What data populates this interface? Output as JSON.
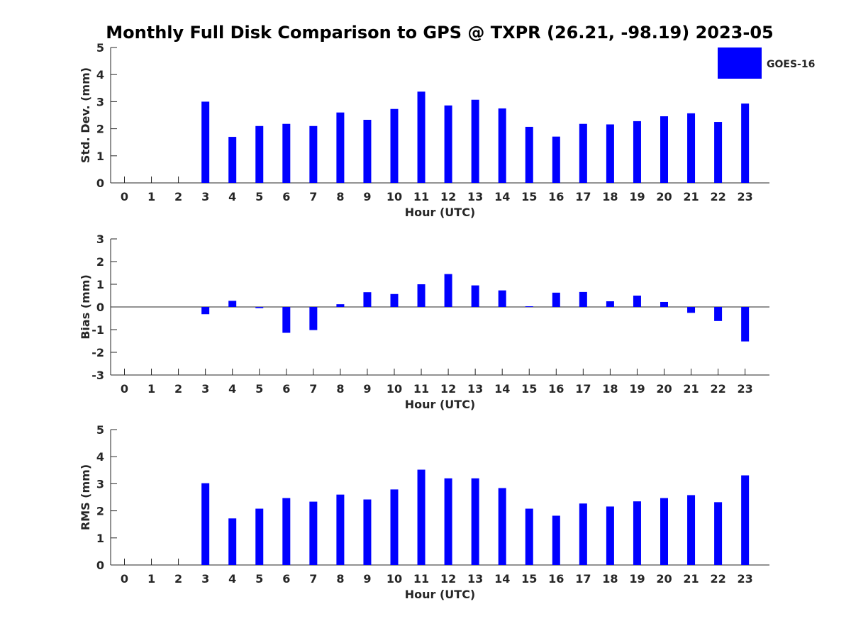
{
  "chart_data": {
    "type": "bar",
    "title": "Monthly Full Disk Comparison to GPS @ TXPR (26.21, -98.19) 2023-05",
    "bar_color": "#0000ff",
    "legend": {
      "label": "GOES-16",
      "placement": "top-right"
    },
    "categories": [
      "0",
      "1",
      "2",
      "3",
      "4",
      "5",
      "6",
      "7",
      "8",
      "9",
      "10",
      "11",
      "12",
      "13",
      "14",
      "15",
      "16",
      "17",
      "18",
      "19",
      "20",
      "21",
      "22",
      "23"
    ],
    "panels": [
      {
        "key": "std",
        "xlabel": "Hour (UTC)",
        "ylabel": "Std. Dev. (mm)",
        "ylim": [
          0,
          5
        ],
        "yticks": [
          "0",
          "1",
          "2",
          "3",
          "4",
          "5"
        ],
        "series": [
          {
            "name": "GOES-16",
            "values": [
              null,
              null,
              null,
              3.0,
              1.7,
              2.1,
              2.18,
              2.1,
              2.6,
              2.33,
              2.73,
              3.37,
              2.86,
              3.07,
              2.75,
              2.07,
              1.71,
              2.18,
              2.16,
              2.28,
              2.46,
              2.57,
              2.25,
              2.93
            ]
          }
        ]
      },
      {
        "key": "bias",
        "xlabel": "Hour (UTC)",
        "ylabel": "Bias (mm)",
        "ylim": [
          -3,
          3
        ],
        "yticks": [
          "-3",
          "-2",
          "-1",
          "0",
          "1",
          "2",
          "3"
        ],
        "series": [
          {
            "name": "GOES-16",
            "values": [
              null,
              null,
              null,
              -0.32,
              0.27,
              -0.05,
              -1.14,
              -1.02,
              0.12,
              0.65,
              0.57,
              1.0,
              1.45,
              0.95,
              0.73,
              0.03,
              0.63,
              0.66,
              0.25,
              0.5,
              0.22,
              -0.26,
              -0.62,
              -1.52
            ]
          }
        ]
      },
      {
        "key": "rms",
        "xlabel": "Hour (UTC)",
        "ylabel": "RMS (mm)",
        "ylim": [
          0,
          5
        ],
        "yticks": [
          "0",
          "1",
          "2",
          "3",
          "4",
          "5"
        ],
        "series": [
          {
            "name": "GOES-16",
            "values": [
              null,
              null,
              null,
              3.02,
              1.72,
              2.08,
              2.47,
              2.34,
              2.6,
              2.42,
              2.79,
              3.52,
              3.2,
              3.2,
              2.84,
              2.08,
              1.82,
              2.27,
              2.16,
              2.35,
              2.47,
              2.58,
              2.32,
              3.31
            ]
          }
        ]
      }
    ]
  }
}
